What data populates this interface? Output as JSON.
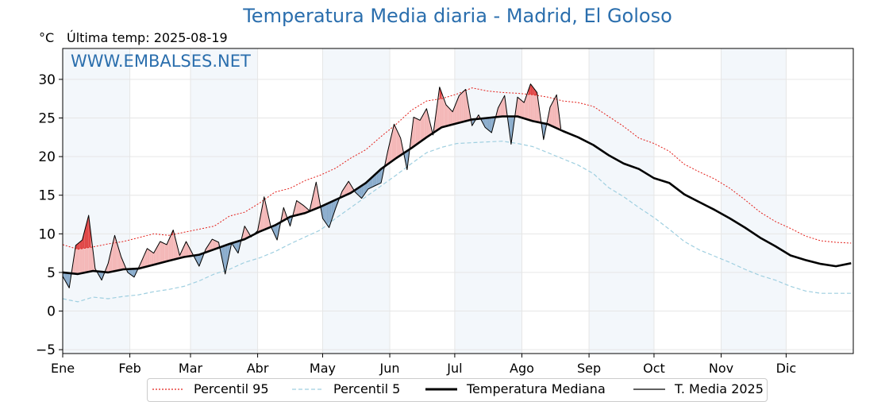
{
  "page": {
    "title": "Temperatura Media diaria - Madrid, El Goloso",
    "unit": "°C",
    "last_temp": "Última temp: 2025-08-19",
    "watermark": "WWW.EMBALSES.NET"
  },
  "legend": [
    {
      "label": "Percentil 95",
      "color": "#e3201b",
      "style": "dotted"
    },
    {
      "label": "Percentil 5",
      "color": "#9fcfe0",
      "style": "dashed"
    },
    {
      "label": "Temperatura Mediana",
      "color": "#000000",
      "style": "thick"
    },
    {
      "label": "T. Media 2025",
      "color": "#000000",
      "style": "thin"
    }
  ],
  "colors": {
    "title": "#2a6ead",
    "p95": "#e3201b",
    "p5": "#9fcfe0",
    "above_median_fill": "#f4b8b8",
    "above_p95_fill": "#e04848",
    "below_median_fill": "#8aaccc",
    "below_p5_fill": "#1f4e7a",
    "band_shading": "#f3f7fb"
  },
  "chart_data": {
    "type": "line",
    "title": "Temperatura Media diaria - Madrid, El Goloso",
    "ylabel": "°C",
    "xlabel": "",
    "ylim": [
      -5.5,
      34
    ],
    "yticks": [
      -5,
      0,
      5,
      10,
      15,
      20,
      25,
      30
    ],
    "ytick_labels": [
      "−5",
      "0",
      "5",
      "10",
      "15",
      "20",
      "25",
      "30"
    ],
    "xticks_day": [
      1,
      32,
      60,
      91,
      121,
      152,
      182,
      213,
      244,
      274,
      305,
      335
    ],
    "xtick_labels": [
      "Ene",
      "Feb",
      "Mar",
      "Abr",
      "May",
      "Jun",
      "Jul",
      "Ago",
      "Sep",
      "Oct",
      "Nov",
      "Dic"
    ],
    "x_range_days": [
      1,
      366
    ],
    "grid": true,
    "legend_position": "bottom",
    "series": [
      {
        "name": "Percentil 95",
        "x": [
          1,
          8,
          15,
          22,
          29,
          36,
          43,
          50,
          57,
          64,
          71,
          78,
          85,
          92,
          99,
          106,
          113,
          120,
          127,
          134,
          141,
          148,
          155,
          162,
          169,
          176,
          183,
          190,
          197,
          204,
          211,
          218,
          225,
          232,
          239,
          246,
          253,
          260,
          267,
          274,
          281,
          288,
          295,
          302,
          309,
          316,
          323,
          330,
          337,
          344,
          351,
          358,
          365
        ],
        "values": [
          8.6,
          8.0,
          8.3,
          8.7,
          9.0,
          9.5,
          10.0,
          9.8,
          10.2,
          10.6,
          11.0,
          12.3,
          12.8,
          14.0,
          15.4,
          15.9,
          16.9,
          17.6,
          18.5,
          19.8,
          20.9,
          22.6,
          24.2,
          26.0,
          27.2,
          27.5,
          28.1,
          28.9,
          28.5,
          28.3,
          28.2,
          28.0,
          27.7,
          27.2,
          27.0,
          26.5,
          25.2,
          23.9,
          22.4,
          21.7,
          20.7,
          19.0,
          18.0,
          17.1,
          15.9,
          14.4,
          12.8,
          11.6,
          10.7,
          9.7,
          9.1,
          8.9,
          8.8
        ]
      },
      {
        "name": "Percentil 5",
        "x": [
          1,
          8,
          15,
          22,
          29,
          36,
          43,
          50,
          57,
          64,
          71,
          78,
          85,
          92,
          99,
          106,
          113,
          120,
          127,
          134,
          141,
          148,
          155,
          162,
          169,
          176,
          183,
          190,
          197,
          204,
          211,
          218,
          225,
          232,
          239,
          246,
          253,
          260,
          267,
          274,
          281,
          288,
          295,
          302,
          309,
          316,
          323,
          330,
          337,
          344,
          351,
          358,
          365
        ],
        "values": [
          1.6,
          1.2,
          1.8,
          1.6,
          1.9,
          2.1,
          2.5,
          2.8,
          3.2,
          3.9,
          4.8,
          5.4,
          6.3,
          6.9,
          7.7,
          8.7,
          9.6,
          10.5,
          12.0,
          13.4,
          14.8,
          16.2,
          17.6,
          19.1,
          20.5,
          21.2,
          21.7,
          21.8,
          21.9,
          22.0,
          21.7,
          21.3,
          20.5,
          19.7,
          18.9,
          17.8,
          16.0,
          14.8,
          13.4,
          12.1,
          10.6,
          9.0,
          7.9,
          7.1,
          6.3,
          5.4,
          4.6,
          4.0,
          3.2,
          2.6,
          2.3,
          2.3,
          2.3
        ]
      },
      {
        "name": "Temperatura Mediana",
        "x": [
          1,
          8,
          15,
          22,
          29,
          36,
          43,
          50,
          57,
          64,
          71,
          78,
          85,
          92,
          99,
          106,
          113,
          120,
          127,
          134,
          141,
          148,
          155,
          162,
          169,
          176,
          183,
          190,
          197,
          204,
          211,
          218,
          225,
          232,
          239,
          246,
          253,
          260,
          267,
          274,
          281,
          288,
          295,
          302,
          309,
          316,
          323,
          330,
          337,
          344,
          351,
          358,
          365
        ],
        "values": [
          5.0,
          4.8,
          5.2,
          5.0,
          5.4,
          5.5,
          6.0,
          6.5,
          7.0,
          7.3,
          8.0,
          8.7,
          9.3,
          10.3,
          11.1,
          12.2,
          12.7,
          13.5,
          14.4,
          15.3,
          16.6,
          18.4,
          19.8,
          21.1,
          22.5,
          23.8,
          24.3,
          24.8,
          25.0,
          25.2,
          25.2,
          24.6,
          24.2,
          23.3,
          22.5,
          21.5,
          20.2,
          19.1,
          18.4,
          17.2,
          16.6,
          15.1,
          14.1,
          13.1,
          12.0,
          10.8,
          9.5,
          8.4,
          7.2,
          6.6,
          6.1,
          5.8,
          6.2
        ]
      },
      {
        "name": "T. Media 2025",
        "x": [
          1,
          4,
          7,
          10,
          13,
          16,
          19,
          22,
          25,
          28,
          31,
          34,
          37,
          40,
          43,
          46,
          49,
          52,
          55,
          58,
          61,
          64,
          67,
          70,
          73,
          76,
          79,
          82,
          85,
          88,
          91,
          94,
          97,
          100,
          103,
          106,
          109,
          112,
          115,
          118,
          121,
          124,
          127,
          130,
          133,
          136,
          139,
          142,
          145,
          148,
          151,
          154,
          157,
          160,
          163,
          166,
          169,
          172,
          175,
          178,
          181,
          184,
          187,
          190,
          193,
          196,
          199,
          202,
          205,
          208,
          211,
          214,
          217,
          220,
          223,
          226,
          229,
          231
        ],
        "values": [
          4.5,
          3.0,
          8.5,
          9.2,
          12.4,
          5.5,
          4.0,
          6.2,
          9.8,
          7.0,
          5.0,
          4.4,
          6.2,
          8.1,
          7.5,
          9.0,
          8.6,
          10.5,
          7.2,
          9.0,
          7.4,
          5.8,
          8.0,
          9.3,
          8.9,
          4.8,
          8.8,
          7.5,
          11.0,
          9.6,
          10.4,
          14.8,
          11.0,
          9.2,
          13.4,
          11.0,
          14.3,
          13.7,
          13.0,
          16.7,
          12.0,
          10.8,
          13.3,
          15.5,
          16.8,
          15.4,
          14.6,
          15.8,
          16.2,
          16.6,
          20.6,
          24.2,
          22.4,
          18.3,
          25.1,
          24.7,
          26.2,
          22.8,
          29.0,
          26.7,
          25.8,
          27.9,
          28.7,
          24.0,
          25.4,
          23.8,
          23.1,
          26.3,
          27.9,
          21.6,
          27.7,
          27.0,
          29.4,
          28.3,
          22.2,
          26.4,
          28.0,
          23.6
        ]
      }
    ]
  }
}
